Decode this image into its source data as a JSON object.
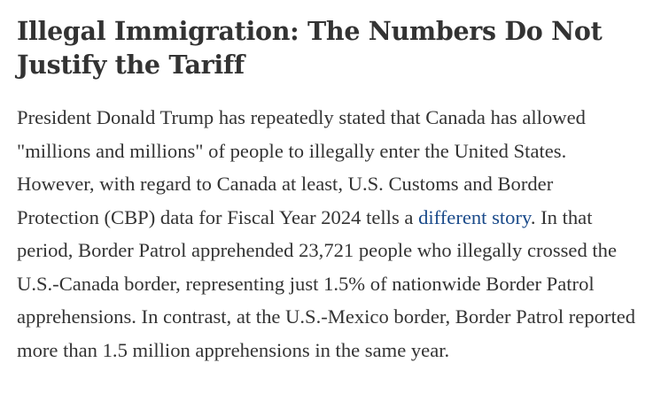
{
  "article": {
    "title": "Illegal Immigration: The Numbers Do Not Justify the Tariff",
    "paragraph": {
      "before_link": "President Donald Trump has repeatedly stated that Canada has allowed \"millions and millions\" of people to illegally enter the United States. However, with regard to Canada at least, U.S. Customs and Border Protection (CBP) data for Fiscal Year 2024 tells a ",
      "link_text": "different story",
      "after_link": ". In that period, Border Patrol apprehended 23,721 people who illegally crossed the U.S.-Canada border, representing just 1.5% of nationwide Border Patrol apprehensions. In contrast, at the U.S.-Mexico border, Border Patrol reported more than 1.5 million apprehensions in the same year."
    },
    "colors": {
      "text": "#333333",
      "link": "#1a4a8a",
      "background": "#ffffff"
    }
  }
}
